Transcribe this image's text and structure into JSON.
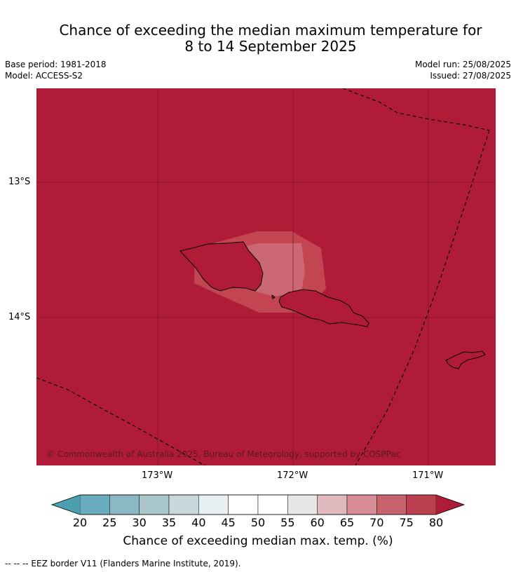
{
  "title_line1": "Chance of exceeding the median maximum temperature for",
  "title_line2": "8 to 14 September 2025",
  "base_period": "Base period: 1981-2018",
  "model": "Model: ACCESS-S2",
  "model_run": "Model run: 25/08/2025",
  "issued": "Issued: 27/08/2025",
  "lat_labels": [
    "13°S",
    "14°S"
  ],
  "lon_labels": [
    "173°W",
    "172°W",
    "171°W"
  ],
  "copyright": "© Commonwealth of Australia 2025, Bureau of Meteorology, supported by COSPPac",
  "colorbar": {
    "ticks": [
      "20",
      "25",
      "30",
      "35",
      "40",
      "45",
      "50",
      "55",
      "60",
      "65",
      "70",
      "75",
      "80"
    ],
    "colors": [
      "#4a9fb0",
      "#6aacbd",
      "#8ab8c3",
      "#a9c6cb",
      "#c8d8db",
      "#e8f0f1",
      "#ffffff",
      "#ffffff",
      "#e7e7e7",
      "#e0b9bd",
      "#d58c96",
      "#c9646f",
      "#bc404f",
      "#b01c38"
    ],
    "label": "Chance of exceeding median max. temp. (%)"
  },
  "legend_note": "--  --  -- EEZ border V11 (Flanders Marine Institute, 2019).",
  "map_colors": {
    "background": "#b01c38",
    "level_75": "#c34552",
    "level_70": "#cc6873",
    "grid": "#7a1426"
  }
}
